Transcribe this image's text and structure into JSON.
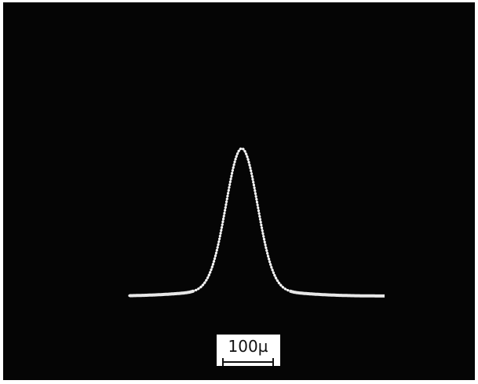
{
  "scale_bar": {
    "label": "100µ"
  }
}
